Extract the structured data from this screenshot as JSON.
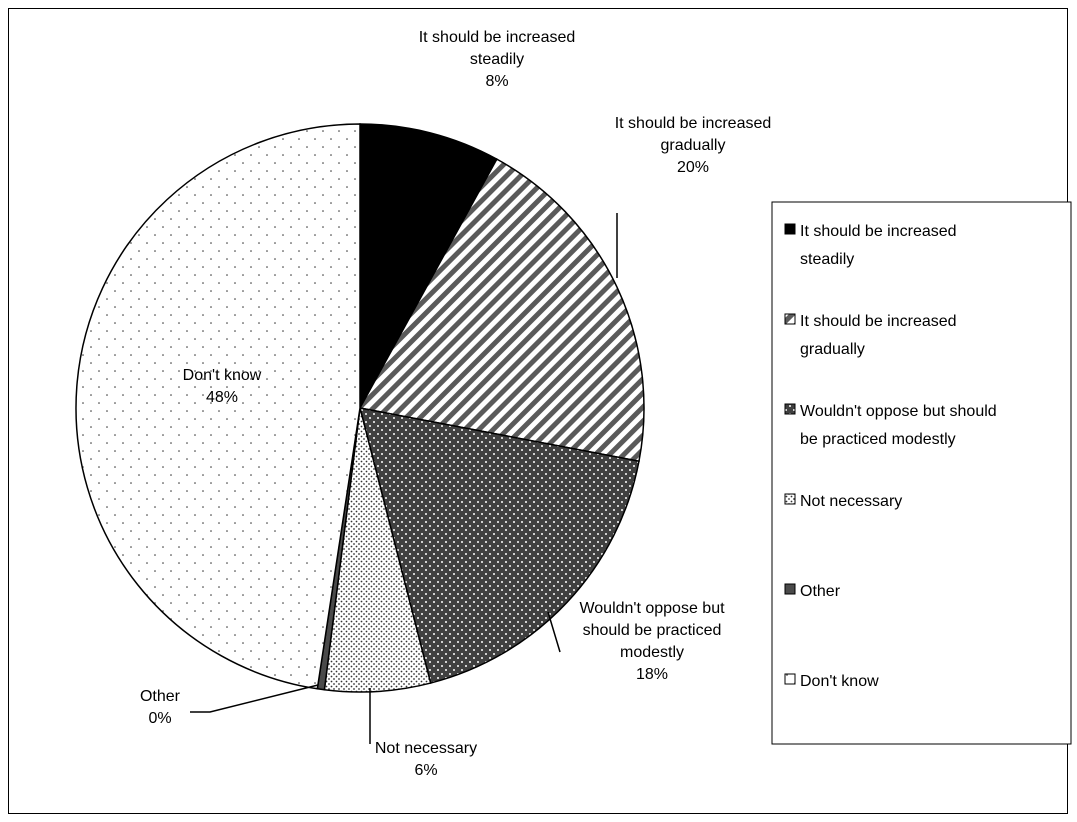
{
  "chart_data": {
    "type": "pie",
    "title": "",
    "legend_position": "right",
    "slices": [
      {
        "label": "It should be increased steadily",
        "value": 8,
        "value_label": "8%",
        "pattern": "solid-black",
        "label_lines": [
          "It should be increased",
          "steadily",
          "8%"
        ],
        "legend_lines": [
          "It should be increased",
          "steadily"
        ]
      },
      {
        "label": "It should be increased gradually",
        "value": 20,
        "value_label": "20%",
        "pattern": "diagonal-stripes",
        "label_lines": [
          "It should be increased",
          "gradually",
          "20%"
        ],
        "legend_lines": [
          "It should be increased",
          "gradually"
        ]
      },
      {
        "label": "Wouldn't oppose but should be practiced modestly",
        "value": 18,
        "value_label": "18%",
        "pattern": "dark-dots",
        "label_lines": [
          "Wouldn't oppose but",
          "should be practiced",
          "modestly",
          "18%"
        ],
        "legend_lines": [
          "Wouldn't oppose but should",
          "be practiced modestly"
        ]
      },
      {
        "label": "Not necessary",
        "value": 6,
        "value_label": "6%",
        "pattern": "dense-dots",
        "label_lines": [
          "Not necessary",
          "6%"
        ],
        "legend_lines": [
          "Not necessary"
        ]
      },
      {
        "label": "Other",
        "value": 0.4,
        "value_label": "0%",
        "pattern": "dark-gray",
        "label_lines": [
          "Other",
          "0%"
        ],
        "legend_lines": [
          "Other"
        ]
      },
      {
        "label": "Don't know",
        "value": 47.6,
        "value_label": "48%",
        "pattern": "sparse-dots",
        "label_lines": [
          "Don't know",
          "48%"
        ],
        "legend_lines": [
          "Don't know"
        ]
      }
    ]
  }
}
